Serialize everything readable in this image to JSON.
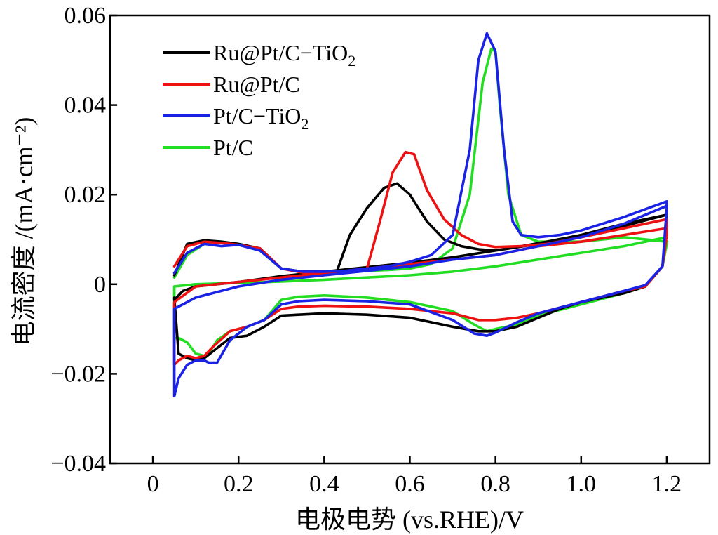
{
  "chart_data": {
    "type": "line",
    "title": "",
    "xlabel": "电极电势 (vs.RHE)/V",
    "ylabel": "电流密度 /(mA·cm⁻²)",
    "xlim": [
      -0.1,
      1.3
    ],
    "ylim": [
      -0.04,
      0.06
    ],
    "x_ticks": [
      "0",
      "0.2",
      "0.4",
      "0.6",
      "0.8",
      "1.0",
      "1.2"
    ],
    "x_tick_values": [
      0,
      0.2,
      0.4,
      0.6,
      0.8,
      1.0,
      1.2
    ],
    "y_ticks": [
      "0.06",
      "0.04",
      "0.02",
      "0",
      "−0.02",
      "−0.04"
    ],
    "y_tick_values": [
      0.06,
      0.04,
      0.02,
      0,
      -0.02,
      -0.04
    ],
    "legend_position": "top-left",
    "series": [
      {
        "name": "Ru@Pt/C−TiO",
        "name_sub": "2",
        "color": "#000000",
        "x": [
          0.05,
          0.08,
          0.12,
          0.16,
          0.2,
          0.25,
          0.3,
          0.35,
          0.4,
          0.43,
          0.46,
          0.5,
          0.54,
          0.57,
          0.6,
          0.64,
          0.68,
          0.72,
          0.76,
          0.8,
          0.86,
          0.92,
          1.0,
          1.1,
          1.2,
          1.2,
          1.19,
          1.15,
          1.1,
          1.0,
          0.95,
          0.9,
          0.85,
          0.8,
          0.76,
          0.7,
          0.6,
          0.5,
          0.4,
          0.34,
          0.3,
          0.26,
          0.22,
          0.18,
          0.14,
          0.12,
          0.1,
          0.08,
          0.06,
          0.05,
          0.05,
          0.07,
          0.1,
          0.2,
          0.3,
          0.4,
          0.5,
          0.6,
          0.7,
          0.8,
          0.9,
          1.0,
          1.1,
          1.2
        ],
        "y": [
          0.002,
          0.009,
          0.0098,
          0.0095,
          0.009,
          0.008,
          0.0035,
          0.0028,
          0.0028,
          0.003,
          0.011,
          0.017,
          0.0215,
          0.0225,
          0.02,
          0.014,
          0.01,
          0.0085,
          0.0078,
          0.0075,
          0.0085,
          0.0095,
          0.011,
          0.0135,
          0.0155,
          0.012,
          0.004,
          -0.0005,
          -0.002,
          -0.004,
          -0.0055,
          -0.0075,
          -0.0095,
          -0.0105,
          -0.0105,
          -0.0095,
          -0.0075,
          -0.0068,
          -0.0065,
          -0.0068,
          -0.007,
          -0.0095,
          -0.0115,
          -0.012,
          -0.015,
          -0.0165,
          -0.017,
          -0.0165,
          -0.0155,
          -0.003,
          -0.0035,
          -0.0015,
          -0.0005,
          0.0005,
          0.0018,
          0.0028,
          0.0038,
          0.0048,
          0.006,
          0.0075,
          0.009,
          0.011,
          0.013,
          0.0155
        ]
      },
      {
        "name": "Ru@Pt/C",
        "color": "#ee1111",
        "x": [
          0.05,
          0.08,
          0.12,
          0.16,
          0.2,
          0.25,
          0.3,
          0.35,
          0.4,
          0.45,
          0.5,
          0.53,
          0.56,
          0.59,
          0.61,
          0.64,
          0.68,
          0.72,
          0.76,
          0.8,
          0.86,
          0.92,
          1.0,
          1.1,
          1.2,
          1.2,
          1.19,
          1.15,
          1.1,
          1.0,
          0.9,
          0.85,
          0.8,
          0.76,
          0.7,
          0.6,
          0.5,
          0.4,
          0.34,
          0.3,
          0.26,
          0.22,
          0.18,
          0.14,
          0.12,
          0.1,
          0.08,
          0.06,
          0.05,
          0.05,
          0.1,
          0.2,
          0.3,
          0.4,
          0.5,
          0.6,
          0.7,
          0.8,
          0.9,
          1.0,
          1.1,
          1.2
        ],
        "y": [
          0.004,
          0.0085,
          0.0095,
          0.0092,
          0.0088,
          0.008,
          0.0035,
          0.0026,
          0.0026,
          0.0028,
          0.0035,
          0.014,
          0.025,
          0.0295,
          0.029,
          0.021,
          0.0145,
          0.011,
          0.009,
          0.0083,
          0.0085,
          0.009,
          0.0105,
          0.0125,
          0.0145,
          0.011,
          0.004,
          -0.0005,
          -0.0015,
          -0.004,
          -0.0065,
          -0.0075,
          -0.008,
          -0.008,
          -0.0065,
          -0.0055,
          -0.005,
          -0.0048,
          -0.005,
          -0.0055,
          -0.008,
          -0.0095,
          -0.0105,
          -0.014,
          -0.016,
          -0.0165,
          -0.016,
          -0.017,
          -0.018,
          -0.004,
          -0.0005,
          0.0005,
          0.0015,
          0.0025,
          0.0035,
          0.0045,
          0.0055,
          0.0065,
          0.0085,
          0.0095,
          0.011,
          0.0125
        ]
      },
      {
        "name": "Pt/C−TiO",
        "name_sub": "2",
        "color": "#1a22e6",
        "x": [
          0.05,
          0.08,
          0.12,
          0.16,
          0.2,
          0.25,
          0.3,
          0.35,
          0.4,
          0.45,
          0.5,
          0.55,
          0.6,
          0.65,
          0.7,
          0.74,
          0.76,
          0.78,
          0.8,
          0.82,
          0.84,
          0.86,
          0.9,
          0.95,
          1.0,
          1.1,
          1.2,
          1.2,
          1.19,
          1.15,
          1.1,
          1.0,
          0.9,
          0.85,
          0.8,
          0.78,
          0.75,
          0.7,
          0.6,
          0.5,
          0.4,
          0.34,
          0.3,
          0.26,
          0.22,
          0.18,
          0.15,
          0.13,
          0.12,
          0.1,
          0.08,
          0.06,
          0.05,
          0.05,
          0.1,
          0.2,
          0.3,
          0.4,
          0.5,
          0.6,
          0.7,
          0.8,
          0.9,
          1.0,
          1.1,
          1.2
        ],
        "y": [
          0.0025,
          0.007,
          0.009,
          0.0085,
          0.0088,
          0.0075,
          0.0035,
          0.0028,
          0.0028,
          0.003,
          0.0035,
          0.004,
          0.005,
          0.0065,
          0.011,
          0.03,
          0.05,
          0.056,
          0.052,
          0.03,
          0.014,
          0.011,
          0.0105,
          0.011,
          0.012,
          0.015,
          0.0185,
          0.017,
          0.004,
          -0.0002,
          -0.0015,
          -0.004,
          -0.0065,
          -0.0085,
          -0.0108,
          -0.0115,
          -0.011,
          -0.008,
          -0.0045,
          -0.0038,
          -0.0035,
          -0.0038,
          -0.0045,
          -0.008,
          -0.0095,
          -0.0125,
          -0.0175,
          -0.0175,
          -0.017,
          -0.017,
          -0.018,
          -0.021,
          -0.025,
          -0.0055,
          -0.003,
          -0.0005,
          0.001,
          0.002,
          0.003,
          0.004,
          0.0055,
          0.0065,
          0.0085,
          0.0105,
          0.0135,
          0.0175
        ]
      },
      {
        "name": "Pt/C",
        "color": "#22dd22",
        "x": [
          0.05,
          0.08,
          0.12,
          0.16,
          0.2,
          0.25,
          0.3,
          0.35,
          0.4,
          0.45,
          0.5,
          0.55,
          0.6,
          0.65,
          0.7,
          0.74,
          0.77,
          0.79,
          0.8,
          0.81,
          0.83,
          0.86,
          0.9,
          0.95,
          1.0,
          1.1,
          1.2,
          1.2,
          1.19,
          1.15,
          1.1,
          1.0,
          0.9,
          0.85,
          0.8,
          0.78,
          0.75,
          0.7,
          0.6,
          0.5,
          0.4,
          0.34,
          0.3,
          0.26,
          0.22,
          0.18,
          0.15,
          0.13,
          0.12,
          0.1,
          0.08,
          0.06,
          0.05,
          0.05,
          0.1,
          0.2,
          0.3,
          0.4,
          0.5,
          0.6,
          0.7,
          0.8,
          0.9,
          1.0,
          1.1,
          1.2
        ],
        "y": [
          0.0015,
          0.0065,
          0.009,
          0.0095,
          0.009,
          0.0075,
          0.0035,
          0.0028,
          0.0028,
          0.0028,
          0.003,
          0.0032,
          0.0035,
          0.0045,
          0.008,
          0.02,
          0.045,
          0.0525,
          0.052,
          0.04,
          0.02,
          0.011,
          0.0095,
          0.0095,
          0.0095,
          0.0105,
          0.0095,
          0.009,
          0.004,
          -0.0005,
          -0.002,
          -0.0045,
          -0.007,
          -0.009,
          -0.01,
          -0.0105,
          -0.009,
          -0.006,
          -0.004,
          -0.003,
          -0.0025,
          -0.0028,
          -0.0035,
          -0.008,
          -0.0095,
          -0.0105,
          -0.0125,
          -0.0155,
          -0.016,
          -0.0155,
          -0.013,
          -0.012,
          -0.012,
          -0.0005,
          0.0,
          0.0003,
          0.0006,
          0.001,
          0.0015,
          0.002,
          0.0028,
          0.004,
          0.0055,
          0.007,
          0.0085,
          0.0105
        ]
      }
    ]
  }
}
